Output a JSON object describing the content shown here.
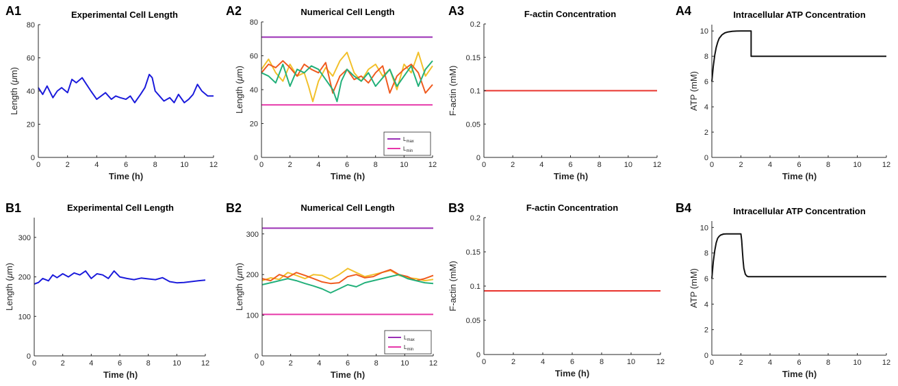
{
  "colors": {
    "blue": "#1a1adb",
    "black": "#111111",
    "red": "#e8312a",
    "purple": "#9a2fb5",
    "pink": "#e636a8",
    "yellow": "#f2c02a",
    "orange": "#ef5a1e",
    "green": "#22b07a"
  },
  "chart_data": [
    {
      "id": "A1",
      "panel_label": "A1",
      "type": "line",
      "title": "Experimental Cell Length",
      "xlabel": "Time (h)",
      "ylabel_main": "Length (",
      "ylabel_greek": "μ",
      "ylabel_end": "m)",
      "xlim": [
        0,
        12
      ],
      "ylim": [
        0,
        80
      ],
      "xticks": [
        "0",
        "2",
        "4",
        "6",
        "8",
        "10",
        "12"
      ],
      "yticks": [
        "0",
        "20",
        "40",
        "60",
        "80"
      ],
      "series": [
        {
          "color": "blue",
          "x": [
            0,
            0.3,
            0.6,
            1,
            1.3,
            1.6,
            2,
            2.3,
            2.6,
            3,
            3.3,
            3.6,
            4,
            4.3,
            4.6,
            5,
            5.3,
            5.6,
            6,
            6.3,
            6.6,
            7,
            7.3,
            7.6,
            7.8,
            8,
            8.3,
            8.6,
            9,
            9.3,
            9.6,
            10,
            10.3,
            10.6,
            10.9,
            11.2,
            11.6,
            12
          ],
          "y": [
            42,
            38,
            43,
            36,
            40,
            42,
            39,
            47,
            45,
            48,
            44,
            40,
            35,
            37,
            39,
            35,
            37,
            36,
            35,
            37,
            33,
            38,
            42,
            50,
            48,
            40,
            37,
            34,
            36,
            33,
            38,
            33,
            35,
            38,
            44,
            40,
            37,
            37
          ]
        }
      ]
    },
    {
      "id": "A2",
      "panel_label": "A2",
      "type": "line",
      "title": "Numerical Cell Length",
      "xlabel": "Time (h)",
      "ylabel_main": "Length (",
      "ylabel_greek": "μ",
      "ylabel_end": "m)",
      "xlim": [
        0,
        12
      ],
      "ylim": [
        0,
        80
      ],
      "xticks": [
        "0",
        "2",
        "4",
        "6",
        "8",
        "10",
        "12"
      ],
      "yticks": [
        "0",
        "20",
        "40",
        "60",
        "80"
      ],
      "legend": [
        {
          "color": "purple",
          "base": "L",
          "sub": "max"
        },
        {
          "color": "pink",
          "base": "L",
          "sub": "min"
        }
      ],
      "series": [
        {
          "color": "purple",
          "x": [
            0,
            12
          ],
          "y": [
            71,
            71
          ]
        },
        {
          "color": "pink",
          "x": [
            0,
            12
          ],
          "y": [
            31,
            31
          ]
        },
        {
          "color": "yellow",
          "x": [
            0,
            0.5,
            1,
            1.5,
            2,
            2.5,
            3,
            3.3,
            3.6,
            4,
            4.5,
            5,
            5.5,
            6,
            6.5,
            7,
            7.5,
            8,
            8.5,
            9,
            9.5,
            10,
            10.5,
            11,
            11.5,
            12
          ],
          "y": [
            52,
            58,
            50,
            45,
            55,
            48,
            50,
            42,
            33,
            45,
            53,
            48,
            57,
            62,
            50,
            45,
            52,
            55,
            48,
            52,
            40,
            55,
            50,
            62,
            48,
            54
          ]
        },
        {
          "color": "orange",
          "x": [
            0,
            0.5,
            1,
            1.5,
            2,
            2.5,
            3,
            3.5,
            4,
            4.5,
            5,
            5.5,
            6,
            6.5,
            7,
            7.5,
            8,
            8.5,
            9,
            9.5,
            10,
            10.5,
            11,
            11.5,
            12
          ],
          "y": [
            50,
            55,
            53,
            57,
            53,
            48,
            55,
            52,
            50,
            56,
            38,
            48,
            52,
            46,
            48,
            44,
            50,
            54,
            38,
            48,
            52,
            55,
            50,
            38,
            43
          ]
        },
        {
          "color": "green",
          "x": [
            0,
            0.5,
            1,
            1.5,
            2,
            2.5,
            3,
            3.5,
            4,
            4.5,
            5,
            5.3,
            5.6,
            6,
            6.5,
            7,
            7.5,
            8,
            8.5,
            9,
            9.5,
            10,
            10.5,
            11,
            11.5,
            12
          ],
          "y": [
            50,
            48,
            44,
            55,
            42,
            52,
            50,
            54,
            52,
            46,
            40,
            33,
            45,
            52,
            48,
            45,
            50,
            42,
            47,
            52,
            42,
            48,
            54,
            42,
            52,
            57
          ]
        }
      ]
    },
    {
      "id": "A3",
      "panel_label": "A3",
      "type": "line",
      "title": "F-actin Concentration",
      "xlabel": "Time (h)",
      "ylabel_main": "F-actin (mM)",
      "xlim": [
        0,
        12
      ],
      "ylim": [
        0,
        0.2
      ],
      "xticks": [
        "0",
        "2",
        "4",
        "6",
        "8",
        "10",
        "12"
      ],
      "yticks": [
        "0",
        "0.05",
        "0.1",
        "0.15",
        "0.2"
      ],
      "series": [
        {
          "color": "red",
          "x": [
            0,
            12
          ],
          "y": [
            0.1,
            0.1
          ]
        }
      ]
    },
    {
      "id": "A4",
      "panel_label": "A4",
      "type": "line",
      "title": "Intracellular ATP Concentration",
      "xlabel": "Time (h)",
      "ylabel_main": "ATP (mM)",
      "xlim": [
        0,
        12
      ],
      "ylim": [
        0,
        10.5
      ],
      "xticks": [
        "0",
        "2",
        "4",
        "6",
        "8",
        "10",
        "12"
      ],
      "yticks": [
        "0",
        "2",
        "4",
        "6",
        "8",
        "10"
      ],
      "series": [
        {
          "color": "black",
          "x": [
            0,
            0.1,
            0.2,
            0.3,
            0.4,
            0.5,
            0.7,
            0.9,
            1.1,
            1.4,
            1.7,
            2.0,
            2.4,
            2.7,
            2.7,
            12
          ],
          "y": [
            6,
            7.2,
            8.1,
            8.7,
            9.1,
            9.4,
            9.7,
            9.85,
            9.92,
            9.97,
            9.99,
            10,
            10,
            10,
            8,
            8
          ]
        }
      ]
    },
    {
      "id": "B1",
      "panel_label": "B1",
      "type": "line",
      "title": "Experimental Cell Length",
      "xlabel": "Time (h)",
      "ylabel_main": "Length (",
      "ylabel_greek": "μ",
      "ylabel_end": "m)",
      "xlim": [
        0,
        12
      ],
      "ylim": [
        0,
        350
      ],
      "xticks": [
        "0",
        "2",
        "4",
        "6",
        "8",
        "10",
        "12"
      ],
      "yticks": [
        "0",
        "100",
        "200",
        "300"
      ],
      "series": [
        {
          "color": "blue",
          "x": [
            0,
            0.3,
            0.6,
            1,
            1.3,
            1.6,
            2,
            2.4,
            2.8,
            3.2,
            3.6,
            4,
            4.4,
            4.8,
            5.2,
            5.6,
            6,
            6.5,
            7,
            7.5,
            8,
            8.5,
            9,
            9.5,
            10,
            10.5,
            11,
            11.5,
            12
          ],
          "y": [
            182,
            186,
            196,
            190,
            205,
            198,
            208,
            200,
            210,
            205,
            215,
            196,
            208,
            205,
            196,
            215,
            200,
            196,
            193,
            197,
            195,
            193,
            198,
            188,
            185,
            186,
            188,
            190,
            192
          ]
        }
      ]
    },
    {
      "id": "B2",
      "panel_label": "B2",
      "type": "line",
      "title": "Numerical Cell Length",
      "xlabel": "Time (h)",
      "ylabel_main": "Length (",
      "ylabel_greek": "μ",
      "ylabel_end": "m)",
      "xlim": [
        0,
        12
      ],
      "ylim": [
        0,
        340
      ],
      "xticks": [
        "0",
        "2",
        "4",
        "6",
        "8",
        "10",
        "12"
      ],
      "yticks": [
        "0",
        "100",
        "200",
        "300"
      ],
      "legend": [
        {
          "color": "purple",
          "base": "L",
          "sub": "max"
        },
        {
          "color": "pink",
          "base": "L",
          "sub": "min"
        }
      ],
      "series": [
        {
          "color": "purple",
          "x": [
            0,
            12
          ],
          "y": [
            314,
            314
          ]
        },
        {
          "color": "pink",
          "x": [
            0,
            12
          ],
          "y": [
            102,
            102
          ]
        },
        {
          "color": "yellow",
          "x": [
            0,
            0.6,
            1.2,
            1.8,
            2.4,
            3,
            3.6,
            4.2,
            4.8,
            5.4,
            6,
            6.6,
            7.2,
            7.8,
            8.4,
            9,
            9.6,
            10.2,
            10.8,
            11.4,
            12
          ],
          "y": [
            185,
            192,
            188,
            205,
            198,
            190,
            200,
            198,
            188,
            200,
            215,
            205,
            195,
            200,
            205,
            210,
            198,
            192,
            190,
            185,
            188
          ]
        },
        {
          "color": "orange",
          "x": [
            0,
            0.6,
            1.2,
            1.8,
            2.4,
            3,
            3.6,
            4.2,
            4.8,
            5.4,
            6,
            6.6,
            7.2,
            7.8,
            8.4,
            9,
            9.6,
            10.2,
            10.8,
            11.4,
            12
          ],
          "y": [
            190,
            185,
            200,
            193,
            205,
            198,
            190,
            182,
            178,
            180,
            195,
            200,
            192,
            195,
            205,
            212,
            200,
            195,
            185,
            190,
            198
          ]
        },
        {
          "color": "green",
          "x": [
            0,
            0.6,
            1.2,
            1.8,
            2.4,
            3,
            3.6,
            4.2,
            4.8,
            5.4,
            6,
            6.6,
            7.2,
            7.8,
            8.4,
            9,
            9.6,
            10.2,
            10.8,
            11.4,
            12
          ],
          "y": [
            175,
            180,
            185,
            190,
            185,
            178,
            172,
            165,
            155,
            165,
            175,
            170,
            180,
            185,
            190,
            195,
            200,
            190,
            185,
            180,
            178
          ]
        }
      ]
    },
    {
      "id": "B3",
      "panel_label": "B3",
      "type": "line",
      "title": "F-actin Concentration",
      "xlabel": "Time (h)",
      "ylabel_main": "F-actin (mM)",
      "xlim": [
        0,
        12
      ],
      "ylim": [
        0,
        0.2
      ],
      "xticks": [
        "0",
        "2",
        "4",
        "6",
        "8",
        "10",
        "12"
      ],
      "yticks": [
        "0",
        "0.05",
        "0.1",
        "0.15",
        "0.2"
      ],
      "series": [
        {
          "color": "red",
          "x": [
            0,
            12
          ],
          "y": [
            0.093,
            0.093
          ]
        }
      ]
    },
    {
      "id": "B4",
      "panel_label": "B4",
      "type": "line",
      "title": "Intracellular ATP Concentration",
      "xlabel": "Time (h)",
      "ylabel_main": "ATP (mM)",
      "xlim": [
        0,
        12
      ],
      "ylim": [
        0,
        10.5
      ],
      "xticks": [
        "0",
        "2",
        "4",
        "6",
        "8",
        "10",
        "12"
      ],
      "yticks": [
        "0",
        "2",
        "4",
        "6",
        "8",
        "10"
      ],
      "series": [
        {
          "color": "black",
          "x": [
            0,
            0.1,
            0.2,
            0.3,
            0.4,
            0.5,
            0.6,
            0.8,
            1.0,
            1.3,
            1.6,
            2.0,
            2.05,
            2.1,
            2.15,
            2.2,
            2.3,
            2.4,
            2.5,
            12
          ],
          "y": [
            6,
            7.3,
            8.2,
            8.8,
            9.15,
            9.3,
            9.4,
            9.48,
            9.5,
            9.5,
            9.5,
            9.5,
            9.0,
            8.2,
            7.4,
            6.8,
            6.35,
            6.2,
            6.15,
            6.15
          ]
        }
      ]
    }
  ]
}
